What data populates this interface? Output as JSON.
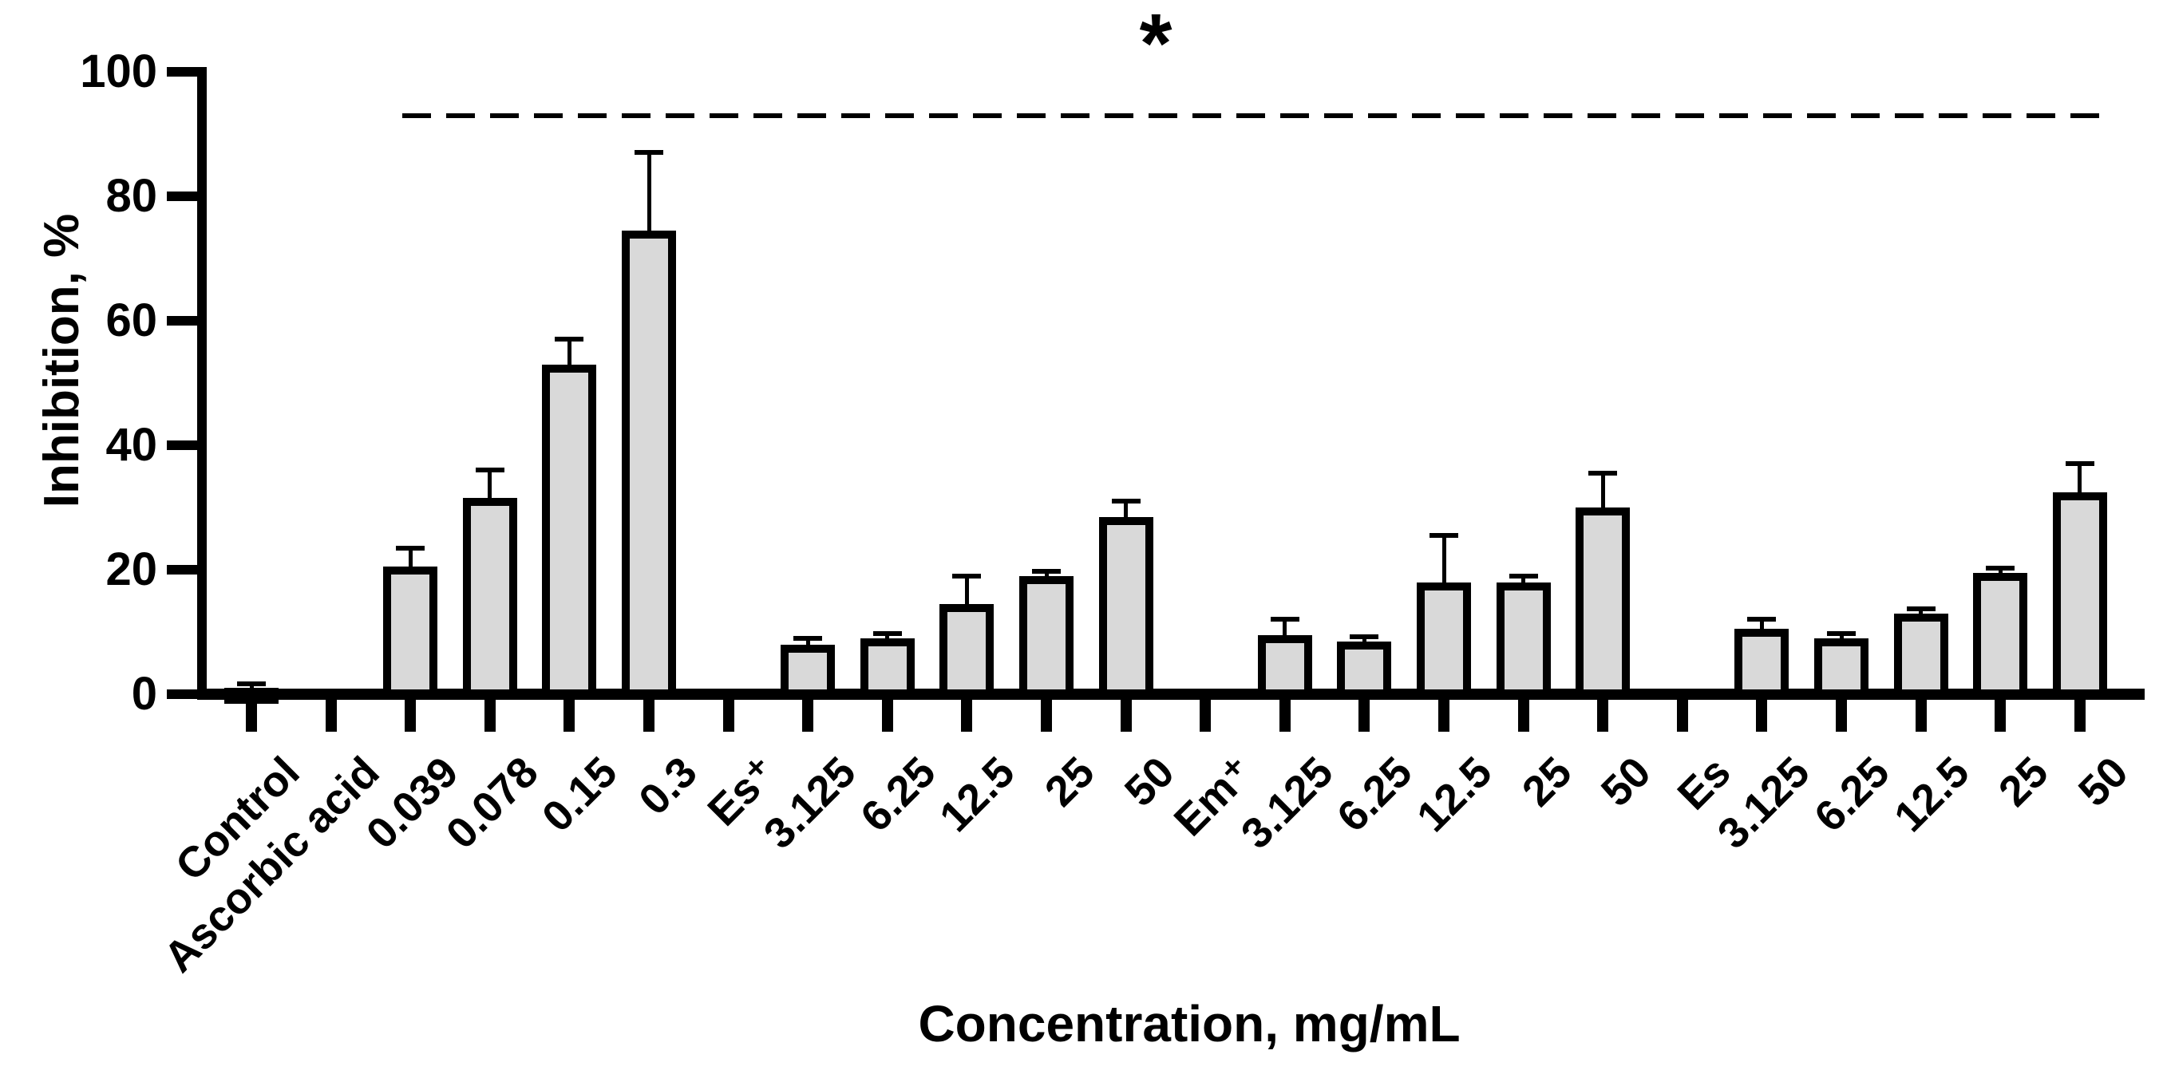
{
  "chart_data": {
    "type": "bar",
    "title": "",
    "xlabel": "Concentration, mg/mL",
    "ylabel": "Inhibition, %",
    "ylim": [
      0,
      100
    ],
    "yticks": [
      0,
      20,
      40,
      60,
      80,
      100
    ],
    "grid": false,
    "legend": false,
    "bar_fill_color": "#d9d9d9",
    "bar_border_color": "#000000",
    "categories": [
      "Control",
      "Ascorbic acid",
      "0.039",
      "0.078",
      "0.15",
      "0.3",
      "Es⁺",
      "3.125",
      "6.25",
      "12.5",
      "25",
      "50",
      "Em⁺",
      "3.125",
      "6.25",
      "12.5",
      "25",
      "50",
      "Es",
      "3.125",
      "6.25",
      "12.5",
      "25",
      "50"
    ],
    "values": [
      1,
      null,
      20.5,
      31.5,
      53,
      74.5,
      null,
      8,
      9,
      14.5,
      19,
      28.5,
      null,
      9.5,
      8.5,
      18,
      18,
      30,
      null,
      10.5,
      9,
      13,
      19.5,
      32.5
    ],
    "errors_sd_up": [
      0.7,
      null,
      3,
      4.5,
      4,
      12.5,
      null,
      1,
      0.7,
      4.5,
      0.7,
      2.5,
      null,
      2.5,
      0.7,
      7.5,
      1,
      5.5,
      null,
      1.5,
      0.7,
      0.7,
      0.7,
      4.5
    ],
    "significance": {
      "label": "*",
      "line_y_value": 93,
      "line_style": "dashed",
      "from_category_index": 2,
      "to_category_index": 23
    }
  }
}
